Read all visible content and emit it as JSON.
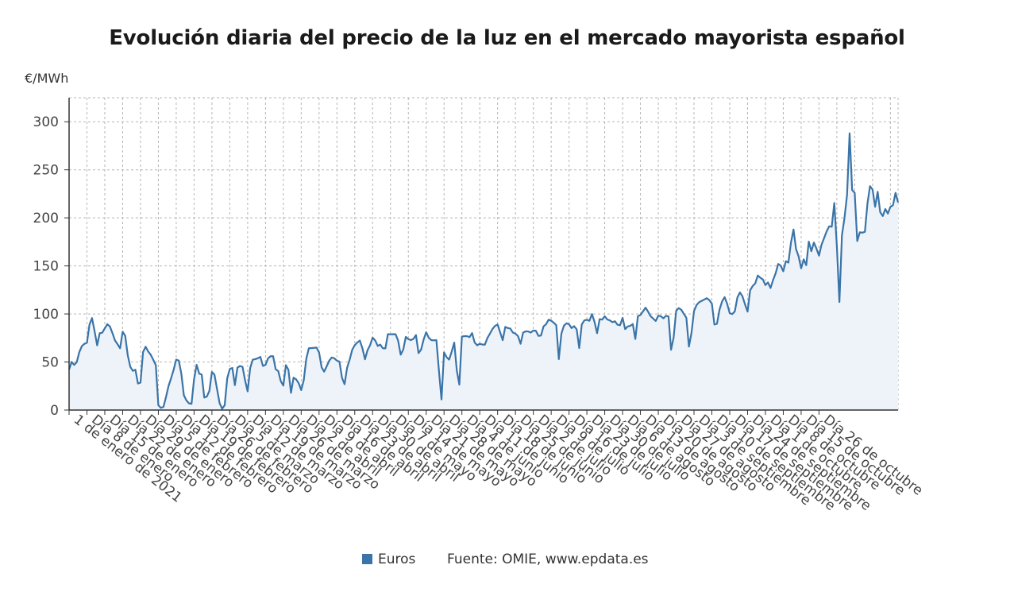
{
  "title": "Evolución diaria del precio de la luz en el mercado mayorista español",
  "accent_color": "#3a74a8",
  "fill_color": "#eef3f9",
  "chart_data": {
    "type": "area",
    "unit_label": "€/MWh",
    "ylim": [
      0,
      325
    ],
    "yticks": [
      0,
      50,
      100,
      150,
      200,
      250,
      300
    ],
    "grid": true,
    "legend": "bottom",
    "series": [
      {
        "name": "Euros",
        "start_date": "2021-01-01",
        "values": [
          42.3,
          50.1,
          47.0,
          49.8,
          60.2,
          66.5,
          68.9,
          70.0,
          89.0,
          95.7,
          82.0,
          67.4,
          79.9,
          80.5,
          85.0,
          89.4,
          87.0,
          80.1,
          72.5,
          68.5,
          64.3,
          81.5,
          77.3,
          57.0,
          45.0,
          40.8,
          42.0,
          27.6,
          28.6,
          60.4,
          65.9,
          61.0,
          57.6,
          52.3,
          46.7,
          5.0,
          2.3,
          3.3,
          13.6,
          25.1,
          33.2,
          42.0,
          52.5,
          51.5,
          38.0,
          15.4,
          10.0,
          7.0,
          6.5,
          32.0,
          47.1,
          38.0,
          36.9,
          13.0,
          14.0,
          20.0,
          39.6,
          36.8,
          22.0,
          7.3,
          1.4,
          5.0,
          33.0,
          42.7,
          43.8,
          25.9,
          44.2,
          45.8,
          44.9,
          30.9,
          19.4,
          43.7,
          52.5,
          53.0,
          53.9,
          55.3,
          45.9,
          47.0,
          53.8,
          56.0,
          56.0,
          42.4,
          40.6,
          30.0,
          25.5,
          46.7,
          41.8,
          17.9,
          33.7,
          32.0,
          28.0,
          20.8,
          31.0,
          53.4,
          64.3,
          64.5,
          64.7,
          65.0,
          60.0,
          44.5,
          40.0,
          45.6,
          51.4,
          54.7,
          53.8,
          51.4,
          50.4,
          33.5,
          26.9,
          44.1,
          52.5,
          62.7,
          67.5,
          70.3,
          72.3,
          64.3,
          52.8,
          62.3,
          67.4,
          75.3,
          72.5,
          66.7,
          68.1,
          64.3,
          64.2,
          79.0,
          78.8,
          79.0,
          78.9,
          72.2,
          57.6,
          62.8,
          76.1,
          73.8,
          72.8,
          74.1,
          78.0,
          59.3,
          62.9,
          73.4,
          81.0,
          75.3,
          72.8,
          72.5,
          72.8,
          41.0,
          11.0,
          60.0,
          55.0,
          52.5,
          60.8,
          70.2,
          41.3,
          26.5,
          76.5,
          76.9,
          76.9,
          75.9,
          80.1,
          70.3,
          67.4,
          69.0,
          68.2,
          68.0,
          75.0,
          79.6,
          84.4,
          87.6,
          89.0,
          80.9,
          72.7,
          86.5,
          85.3,
          84.8,
          80.6,
          79.5,
          77.0,
          69.0,
          80.6,
          81.9,
          81.8,
          80.6,
          82.7,
          82.5,
          77.2,
          77.5,
          87.0,
          89.4,
          94.0,
          93.0,
          90.9,
          88.3,
          53.0,
          79.5,
          87.8,
          90.3,
          89.3,
          85.3,
          87.3,
          84.0,
          64.5,
          89.1,
          93.3,
          93.9,
          92.9,
          99.9,
          91.7,
          80.0,
          94.6,
          94.1,
          97.5,
          94.3,
          93.3,
          91.5,
          92.4,
          88.8,
          88.3,
          95.9,
          84.2,
          87.0,
          87.6,
          89.5,
          74.0,
          97.7,
          98.9,
          102.7,
          106.6,
          102.4,
          97.6,
          95.2,
          92.7,
          98.2,
          97.6,
          95.5,
          98.0,
          97.5,
          62.7,
          75.4,
          103.3,
          106.1,
          104.4,
          100.1,
          96.0,
          66.0,
          80.1,
          103.0,
          109.3,
          112.2,
          113.6,
          115.0,
          116.4,
          114.4,
          110.8,
          89.0,
          89.8,
          104.5,
          113.0,
          117.5,
          110.5,
          100.8,
          99.9,
          102.7,
          117.1,
          122.4,
          118.3,
          110.0,
          102.4,
          124.6,
          129.1,
          131.8,
          140.0,
          137.7,
          135.9,
          130.0,
          132.8,
          127.0,
          135.4,
          142.3,
          152.0,
          150.3,
          144.4,
          154.9,
          153.4,
          174.0,
          187.9,
          167.5,
          160.0,
          147.5,
          156.8,
          150.7,
          175.3,
          165.3,
          174.3,
          168.0,
          160.7,
          172.1,
          179.0,
          186.0,
          191.2,
          190.8,
          215.5,
          171.0,
          112.4,
          182.0,
          200.0,
          224.0,
          288.0,
          229.0,
          226.0,
          175.9,
          185.0,
          184.6,
          185.5,
          215.0,
          233.0,
          229.5,
          211.5,
          227.1,
          206.0,
          201.9,
          209.2,
          204.5,
          211.5,
          213.1,
          226.0,
          216.0
        ]
      }
    ],
    "x_tick_labels": [
      "1 de enero de 2021",
      "Día 8 de enero",
      "Día 15 de enero",
      "Día 22 de enero",
      "Día 29 de enero",
      "Día 5 de febrero",
      "Día 12 de febrero",
      "Día 19 de febrero",
      "Día 26 de febrero",
      "Día 5 de marzo",
      "Día 12 de marzo",
      "Día 19 de marzo",
      "Día 26 de marzo",
      "Día 2 de abril",
      "Día 9 de abril",
      "Día 16 de abril",
      "Día 23 de abril",
      "Día 30 de abril",
      "Día 7 de mayo",
      "Día 14 de mayo",
      "Día 21 de mayo",
      "Día 28 de mayo",
      "Día 4 de junio",
      "Día 11 de junio",
      "Día 18 de junio",
      "Día 25 de junio",
      "Día 2 de julio",
      "Día 9 de julio",
      "Día 16 de julio",
      "Día 23 de julio",
      "Día 30 de julio",
      "Día 6 de agosto",
      "Día 13 de agosto",
      "Día 20 de agosto",
      "Día 27 de agosto",
      "Día 3 de septiembre",
      "Día 10 de septiembre",
      "Día 17 de septiembre",
      "Día 24 de septiembre",
      "Día 1 de octubre",
      "Día 8 de octubre",
      "Día 15 de octubre",
      "Día 26 de octubre"
    ]
  },
  "legend": {
    "series_label": "Euros",
    "source": "Fuente: OMIE, www.epdata.es"
  }
}
